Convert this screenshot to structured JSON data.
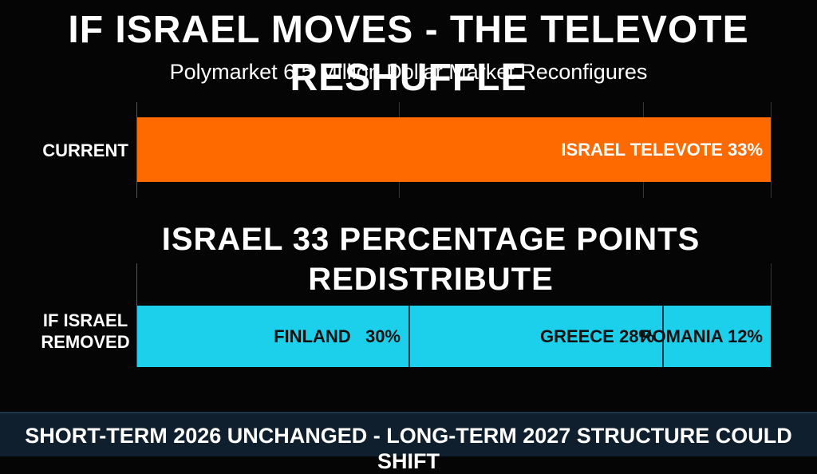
{
  "header": {
    "title": "IF ISRAEL MOVES - THE TELEVOTE RESHUFFLE",
    "subtitle": "Polymarket 6.5 Million Dollar Market Reconfigures"
  },
  "middle_heading": "ISRAEL 33 PERCENTAGE POINTS REDISTRIBUTE",
  "footer": {
    "text": "SHORT-TERM 2026 UNCHANGED - LONG-TERM 2027 STRUCTURE COULD SHIFT"
  },
  "colors": {
    "current_bar": "#ff6a00",
    "redistributed_bar": "#1ccfea",
    "background": "#050505",
    "footer_bg": "#0f1f2e"
  },
  "chart_data": {
    "type": "bar",
    "rows": [
      {
        "label": "CURRENT",
        "segments": [
          {
            "name": "ISRAEL",
            "value": 33,
            "text": "ISRAEL TELEVOTE 33%"
          }
        ]
      },
      {
        "label": "IF ISRAEL REMOVED",
        "segments": [
          {
            "name": "FINLAND",
            "value": 30,
            "text": "FINLAND   30%"
          },
          {
            "name": "GREECE",
            "value": 28,
            "text": "GREECE 28%"
          },
          {
            "name": "ROMANIA",
            "value": 12,
            "text": "ROMANIA 12%"
          }
        ]
      }
    ],
    "grid": true
  }
}
